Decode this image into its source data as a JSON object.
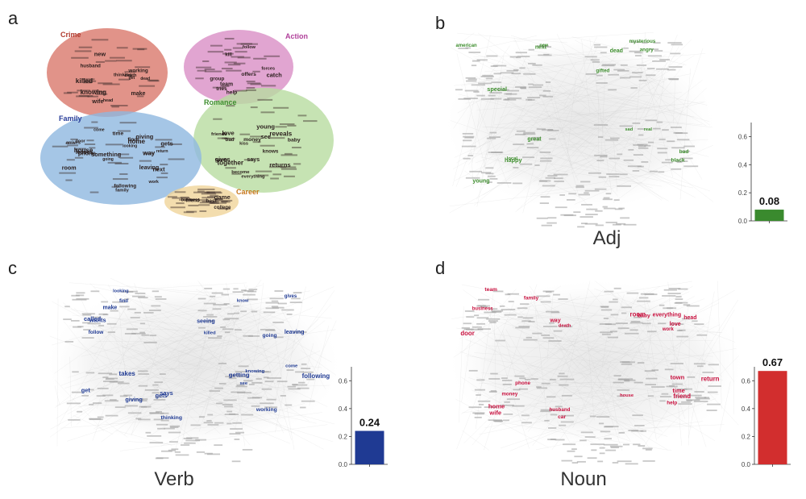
{
  "panels": {
    "a": {
      "letter": "a",
      "clusters": [
        {
          "name": "Crime",
          "color": "#b03a2e",
          "fill": "#d9786b"
        },
        {
          "name": "Action",
          "color": "#b0409a",
          "fill": "#d98ec6"
        },
        {
          "name": "Romance",
          "color": "#3e8e2e",
          "fill": "#b8dca0"
        },
        {
          "name": "Family",
          "color": "#2a3e9a",
          "fill": "#8fb8e0"
        },
        {
          "name": "Career",
          "color": "#c8781e",
          "fill": "#f0d49a"
        }
      ],
      "words": {
        "crime": [
          "death",
          "head",
          "make",
          "get",
          "killed",
          "new",
          "wife",
          "husband",
          "dead",
          "thinking",
          "working",
          "knowing"
        ],
        "action": [
          "help",
          "tries",
          "team",
          "kill",
          "follow",
          "offers",
          "catch",
          "forces",
          "group"
        ],
        "romance": [
          "love",
          "gives",
          "money",
          "says",
          "knows",
          "friends",
          "see",
          "wants",
          "young",
          "everything",
          "together",
          "kiss",
          "baby",
          "become",
          "reveals",
          "returns",
          "bad"
        ],
        "family": [
          "looking",
          "going",
          "time",
          "way",
          "leaves",
          "return",
          "something",
          "home",
          "work",
          "gets",
          "arrives",
          "house",
          "family",
          "next",
          "room",
          "find",
          "phone",
          "leaving",
          "giving",
          "following",
          "come",
          "door"
        ],
        "career": [
          "college",
          "friend",
          "best",
          "business",
          "game"
        ]
      }
    },
    "b": {
      "letter": "b",
      "pos": "Adj",
      "value_label": "0.08",
      "color": "#3e8e2e",
      "words": [
        "new",
        "dead",
        "young",
        "black",
        "next",
        "angry",
        "local",
        "bad",
        "special",
        "gifted",
        "great",
        "real",
        "american",
        "mysterious",
        "happy",
        "sad"
      ]
    },
    "c": {
      "letter": "c",
      "pos": "Verb",
      "value_label": "0.24",
      "color": "#1f3a93",
      "words": [
        "make",
        "killed",
        "get",
        "getting",
        "looking",
        "going",
        "gets",
        "come",
        "find",
        "gives",
        "says",
        "see",
        "wants",
        "know",
        "thinking",
        "working",
        "follow",
        "leaving",
        "giving",
        "following",
        "called",
        "seeing",
        "takes",
        "knowing"
      ]
    },
    "d": {
      "letter": "d",
      "pos": "Noun",
      "value_label": "0.67",
      "color": "#c8103e",
      "words": [
        "death",
        "head",
        "wife",
        "help",
        "team",
        "love",
        "money",
        "time",
        "way",
        "work",
        "home",
        "house",
        "family",
        "room",
        "phone",
        "friend",
        "business",
        "baby",
        "husband",
        "return",
        "door",
        "everything",
        "car",
        "town"
      ]
    }
  },
  "chart_data": [
    {
      "type": "bar",
      "title": "",
      "xlabel": "Adj",
      "ylabel": "",
      "categories": [
        "Adj"
      ],
      "values": [
        0.08
      ],
      "ylim": [
        0,
        0.7
      ],
      "yticks": [
        "0.0",
        "0.2",
        "0.4",
        "0.6"
      ],
      "color": "#3a8a2e"
    },
    {
      "type": "bar",
      "title": "",
      "xlabel": "Verb",
      "ylabel": "",
      "categories": [
        "Verb"
      ],
      "values": [
        0.24
      ],
      "ylim": [
        0,
        0.7
      ],
      "yticks": [
        "0.0",
        "0.2",
        "0.4",
        "0.6"
      ],
      "color": "#1f3a93"
    },
    {
      "type": "bar",
      "title": "",
      "xlabel": "Noun",
      "ylabel": "",
      "categories": [
        "Noun"
      ],
      "values": [
        0.67
      ],
      "ylim": [
        0,
        0.7
      ],
      "yticks": [
        "0.0",
        "0.2",
        "0.4",
        "0.6"
      ],
      "color": "#d22e2e"
    }
  ]
}
